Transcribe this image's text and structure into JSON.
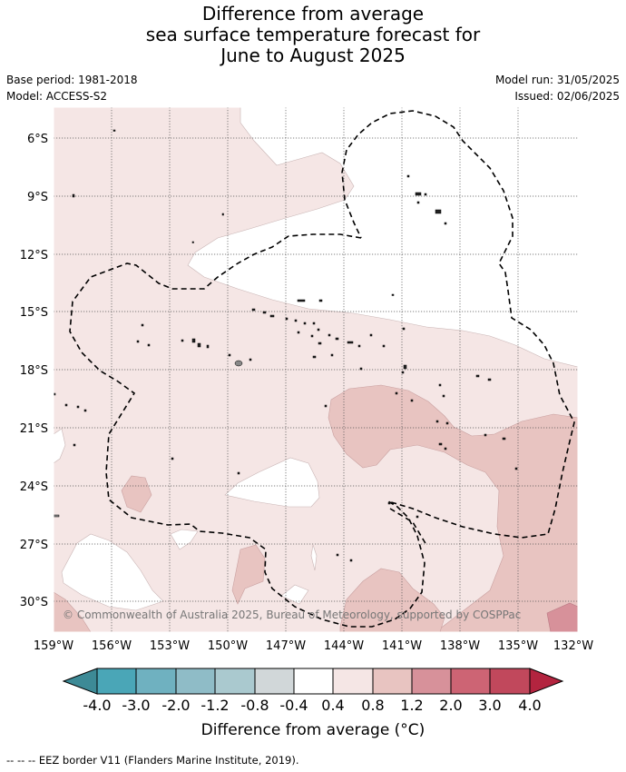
{
  "title": {
    "line1": "Difference from average",
    "line2": "sea surface temperature forecast for",
    "line3": "June to August 2025"
  },
  "meta": {
    "base_period": "Base period: 1981-2018",
    "model": "Model: ACCESS-S2",
    "model_run": "Model run: 31/05/2025",
    "issued": "Issued: 02/06/2025"
  },
  "map": {
    "lat_labels": [
      "6°S",
      "9°S",
      "12°S",
      "15°S",
      "18°S",
      "21°S",
      "24°S",
      "27°S",
      "30°S"
    ],
    "lon_labels": [
      "159°W",
      "156°W",
      "153°W",
      "150°W",
      "147°W",
      "144°W",
      "141°W",
      "138°W",
      "135°W",
      "132°W"
    ],
    "copyright": "© Commonwealth of Australia 2025, Bureau of Meteorology, supported by COSPPac"
  },
  "colorbar": {
    "labels": [
      "-4.0",
      "-3.0",
      "-2.0",
      "-1.2",
      "-0.8",
      "-0.4",
      "0.4",
      "0.8",
      "1.2",
      "2.0",
      "3.0",
      "4.0"
    ],
    "colors": [
      "#3d8a96",
      "#4aa6b7",
      "#6fb1c0",
      "#8fbcc7",
      "#aac9cf",
      "#d1d7d9",
      "#ffffff",
      "#f5e6e5",
      "#e8c4c1",
      "#d7919a",
      "#cd6474",
      "#c1485c",
      "#b3243f"
    ],
    "title": "Difference from average (°C)"
  },
  "footnote": "--  --  -- EEZ border V11 (Flanders Marine Institute, 2019)."
}
